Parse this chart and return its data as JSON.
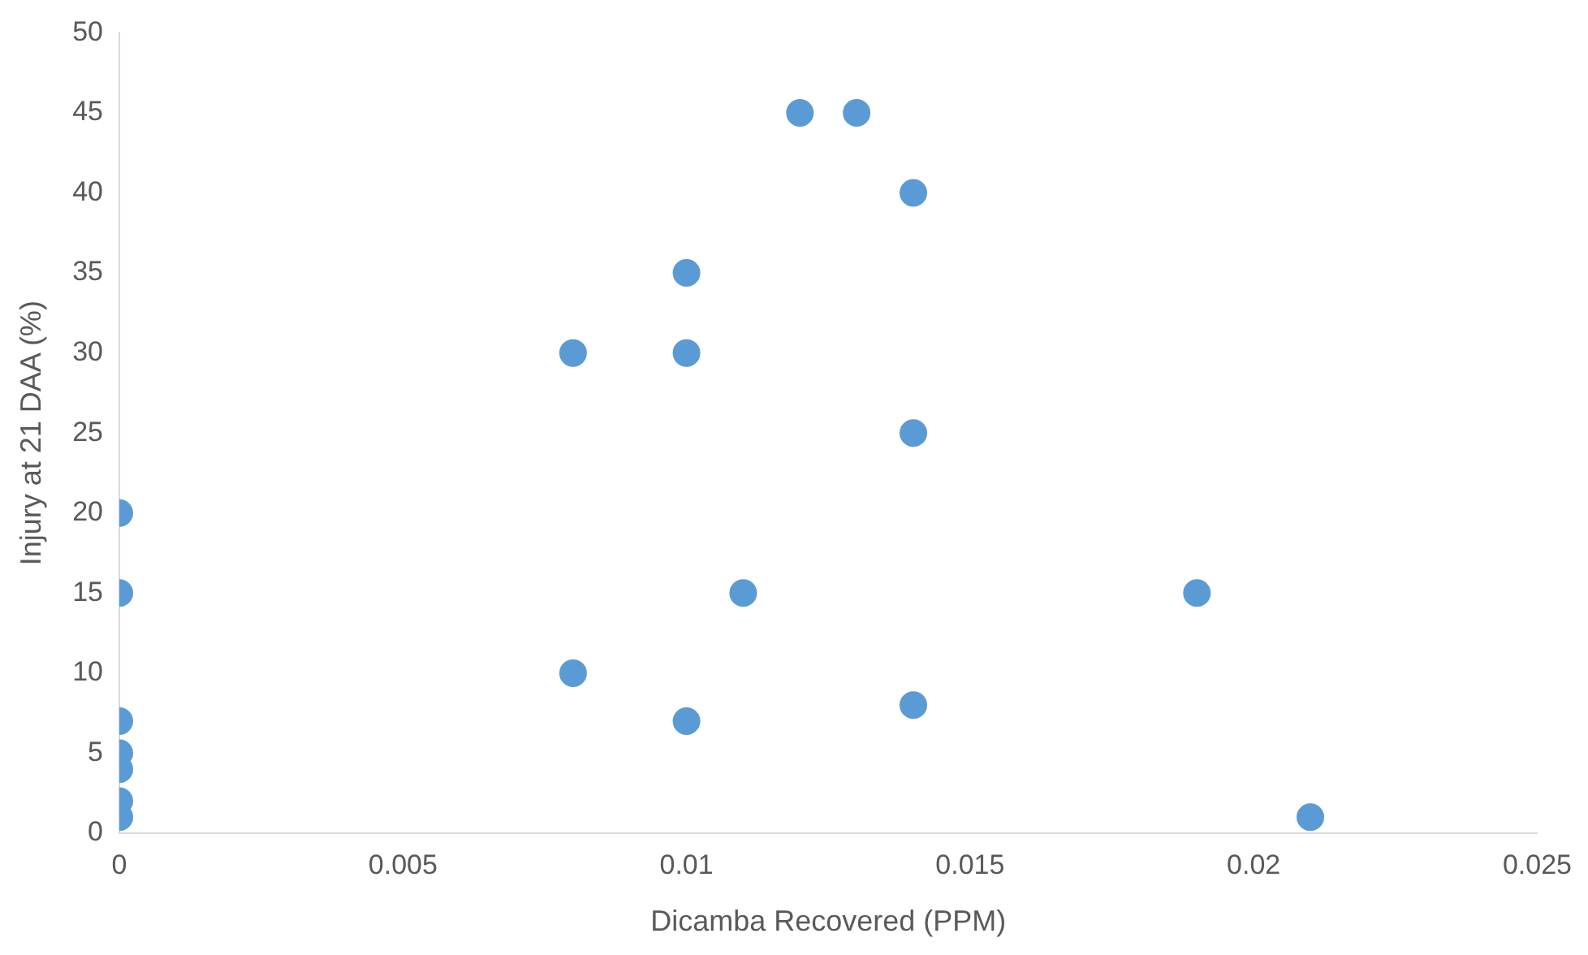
{
  "chart_data": {
    "type": "scatter",
    "xlabel": "Dicamba Recovered (PPM)",
    "ylabel": "Injury at 21 DAA (%)",
    "x": [
      0,
      0,
      0,
      0,
      0,
      0,
      0,
      0.008,
      0.008,
      0.01,
      0.01,
      0.01,
      0.011,
      0.012,
      0.013,
      0.014,
      0.014,
      0.014,
      0.019,
      0.021
    ],
    "series": [
      {
        "color": "#5b9bd5",
        "values": [
          20,
          15,
          7,
          5,
          4,
          2,
          1,
          30,
          10,
          35,
          30,
          7,
          15,
          45,
          45,
          40,
          25,
          8,
          15,
          1
        ]
      }
    ],
    "xlim": [
      0,
      0.025
    ],
    "xticks": [
      0,
      0.005,
      0.01,
      0.015,
      0.02,
      0.025
    ],
    "ylim": [
      0,
      50
    ],
    "yticks": [
      0,
      5,
      10,
      15,
      20,
      25,
      30,
      35,
      40,
      45,
      50
    ],
    "grid": false,
    "marker": "circle"
  }
}
